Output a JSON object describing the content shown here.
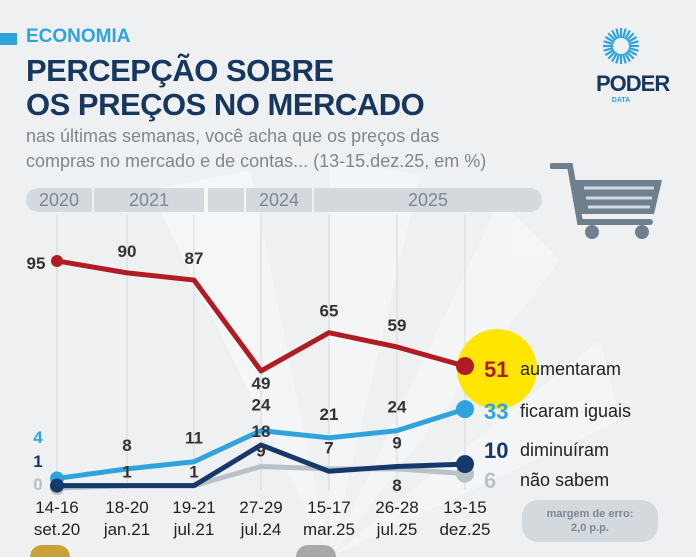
{
  "header": {
    "section": "ECONOMIA",
    "title_line1": "PERCEPÇÃO SOBRE",
    "title_line2": "OS PREÇOS NO MERCADO",
    "subtitle_line1": "nas últimas semanas, você acha que os preços das",
    "subtitle_line2": "compras no mercado e de contas... (13-15.dez.25, em %)"
  },
  "logo": {
    "name": "PODER",
    "sub": "DATA"
  },
  "years": [
    "2020",
    "2021",
    "",
    "2024",
    "2025"
  ],
  "margin": {
    "line1": "margem de erro:",
    "line2": "2,0 p.p."
  },
  "colors": {
    "aumentaram": "#b01c22",
    "ficaram": "#2fa3dc",
    "diminuiram": "#15396b",
    "nao_sabem": "#b9c1c8",
    "highlight": "#ffe600"
  },
  "chart_data": {
    "type": "line",
    "categories": [
      [
        "14-16",
        "set.20"
      ],
      [
        "18-20",
        "jan.21"
      ],
      [
        "19-21",
        "jul.21"
      ],
      [
        "27-29",
        "jul.24"
      ],
      [
        "15-17",
        "mar.25"
      ],
      [
        "26-28",
        "jul.25"
      ],
      [
        "13-15",
        "dez.25"
      ]
    ],
    "ylim": [
      0,
      100
    ],
    "series": [
      {
        "name": "aumentaram",
        "values": [
          95,
          90,
          87,
          49,
          65,
          59,
          51
        ],
        "labels": [
          "95",
          "90",
          "87",
          "49",
          "65",
          "59",
          "51"
        ]
      },
      {
        "name": "ficaram iguais",
        "values": [
          4,
          8,
          11,
          24,
          21,
          24,
          33
        ],
        "labels": [
          "4",
          "8",
          "11",
          "24",
          "21",
          "24",
          "33"
        ]
      },
      {
        "name": "diminuíram",
        "values": [
          1,
          1,
          1,
          18,
          7,
          9,
          10
        ],
        "labels": [
          "1",
          "1",
          "1",
          "18",
          "7",
          "9",
          "10"
        ]
      },
      {
        "name": "não sabem",
        "values": [
          0,
          1,
          1,
          9,
          8,
          8,
          6
        ],
        "labels": [
          "0",
          "",
          "",
          "9",
          "",
          "8",
          "6"
        ]
      }
    ]
  }
}
